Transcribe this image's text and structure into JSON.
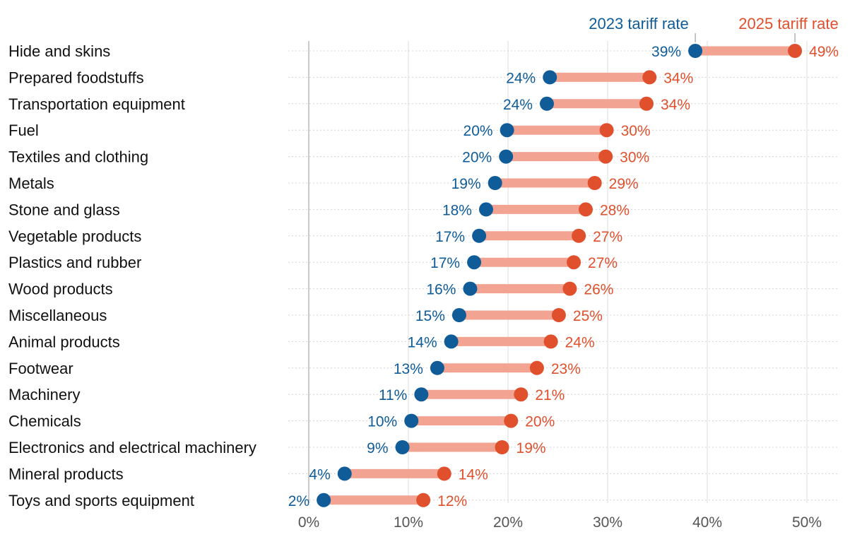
{
  "chart_data": {
    "type": "dumbbell",
    "title": "",
    "xlabel": "",
    "ylabel": "",
    "xlim": [
      0,
      50
    ],
    "x_ticks": [
      0,
      10,
      20,
      30,
      40,
      50
    ],
    "x_tick_labels": [
      "0%",
      "10%",
      "20%",
      "30%",
      "40%",
      "50%"
    ],
    "categories": [
      "Hide and skins",
      "Prepared foodstuffs",
      "Transportation equipment",
      "Fuel",
      "Textiles and clothing",
      "Metals",
      "Stone and glass",
      "Vegetable products",
      "Plastics and rubber",
      "Wood products",
      "Miscellaneous",
      "Animal products",
      "Footwear",
      "Machinery",
      "Chemicals",
      "Electronics and electrical machinery",
      "Mineral products",
      "Toys and sports equipment"
    ],
    "series": [
      {
        "name": "2023 tariff rate",
        "color": "#0f5c99",
        "values": [
          38.8,
          24.2,
          23.9,
          19.9,
          19.8,
          18.7,
          17.8,
          17.1,
          16.6,
          16.2,
          15.1,
          14.3,
          12.9,
          11.3,
          10.3,
          9.4,
          3.6,
          1.5
        ],
        "labels": [
          "39%",
          "24%",
          "24%",
          "20%",
          "20%",
          "19%",
          "18%",
          "17%",
          "17%",
          "16%",
          "15%",
          "14%",
          "13%",
          "11%",
          "10%",
          "9%",
          "4%",
          "2%"
        ]
      },
      {
        "name": "2025 tariff rate",
        "color": "#e0502d",
        "values": [
          48.8,
          34.2,
          33.9,
          29.9,
          29.8,
          28.7,
          27.8,
          27.1,
          26.6,
          26.2,
          25.1,
          24.3,
          22.9,
          21.3,
          20.3,
          19.4,
          13.6,
          11.5
        ],
        "labels": [
          "49%",
          "34%",
          "34%",
          "30%",
          "30%",
          "29%",
          "28%",
          "27%",
          "27%",
          "26%",
          "25%",
          "24%",
          "23%",
          "21%",
          "20%",
          "19%",
          "14%",
          "12%"
        ]
      }
    ],
    "connector_color": "#f2a391",
    "legend": [
      "2023 tariff rate",
      "2025 tariff rate"
    ]
  }
}
